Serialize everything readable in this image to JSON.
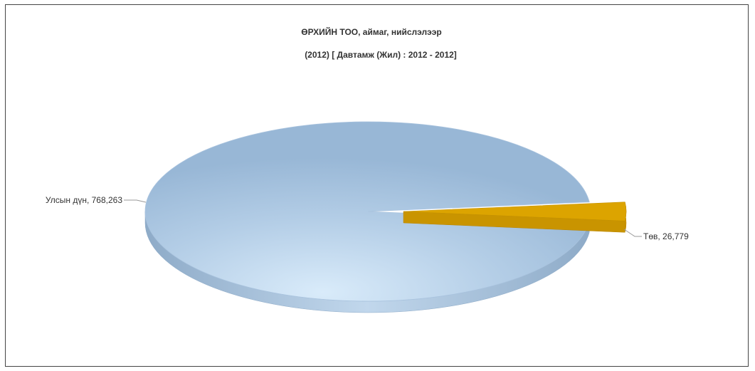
{
  "chart_data": {
    "type": "pie",
    "title": "ӨРХИЙН ТОО, аймаг, нийслэлээр",
    "subtitle": "(2012)  [ Давтамж (Жил) : 2012 - 2012]",
    "slices": [
      {
        "label": "Улсын дүн",
        "value": 768263,
        "value_text": "768,263",
        "color": "#9bbad9",
        "exploded": false
      },
      {
        "label": "Төв",
        "value": 26779,
        "value_text": "26,779",
        "color": "#dca400",
        "exploded": true
      }
    ],
    "legend": "none",
    "style": "3d"
  }
}
